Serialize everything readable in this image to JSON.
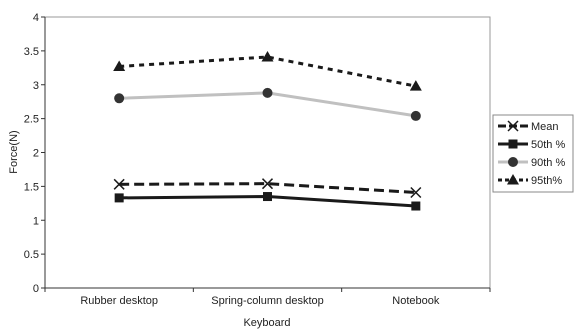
{
  "chart_data": {
    "type": "line",
    "title": "",
    "xlabel": "Keyboard",
    "ylabel": "Force(N)",
    "categories": [
      "Rubber desktop",
      "Spring-column desktop",
      "Notebook"
    ],
    "ylim": [
      0,
      4
    ],
    "yticks": [
      "0",
      "0.5",
      "1",
      "1.5",
      "2",
      "2.5",
      "3",
      "3.5",
      "4"
    ],
    "grid": false,
    "legend_position": "right",
    "series": [
      {
        "name": "Mean",
        "values": [
          1.53,
          1.54,
          1.41
        ],
        "marker": "x",
        "line": "long-dash",
        "color": "#1a1a1a"
      },
      {
        "name": "50th %",
        "values": [
          1.33,
          1.35,
          1.21
        ],
        "marker": "square",
        "line": "solid",
        "color": "#1a1a1a"
      },
      {
        "name": "90th %",
        "values": [
          2.8,
          2.88,
          2.54
        ],
        "marker": "circle",
        "line": "solid",
        "color": "#c0c0c0"
      },
      {
        "name": "95th%",
        "values": [
          3.27,
          3.41,
          2.98
        ],
        "marker": "triangle",
        "line": "short-dash",
        "color": "#1a1a1a"
      }
    ]
  }
}
